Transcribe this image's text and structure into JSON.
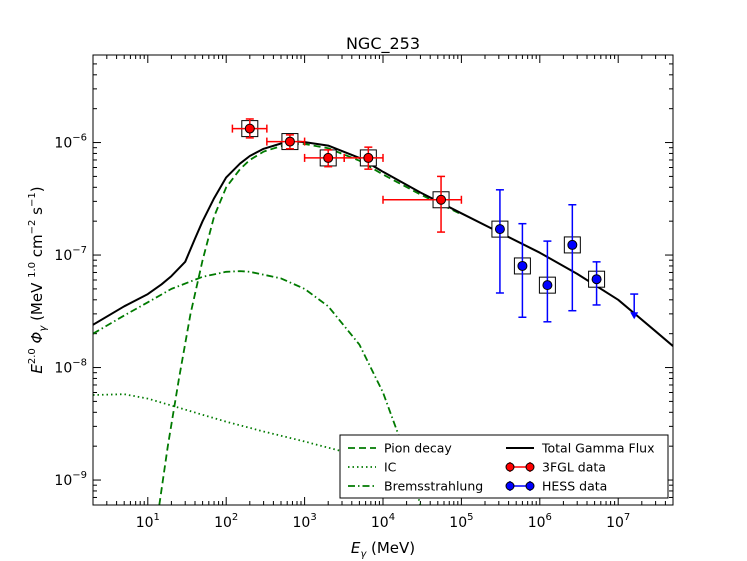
{
  "chart_data": {
    "type": "scatter",
    "title": "NGC_253",
    "xlabel": "E_γ (MeV)",
    "ylabel": "E^2.0 Φ_γ (MeV^1.0 cm^-2 s^-1)",
    "xscale": "log",
    "yscale": "log",
    "xlim": [
      2,
      50000000
    ],
    "ylim": [
      6e-10,
      6e-06
    ],
    "x_ticks": [
      {
        "value": 10,
        "label": "10",
        "exp": "1"
      },
      {
        "value": 100,
        "label": "10",
        "exp": "2"
      },
      {
        "value": 1000,
        "label": "10",
        "exp": "3"
      },
      {
        "value": 10000,
        "label": "10",
        "exp": "4"
      },
      {
        "value": 100000,
        "label": "10",
        "exp": "5"
      },
      {
        "value": 1000000,
        "label": "10",
        "exp": "6"
      },
      {
        "value": 10000000,
        "label": "10",
        "exp": "7"
      }
    ],
    "y_ticks": [
      {
        "value": 1e-09,
        "label": "10",
        "exp": "−9"
      },
      {
        "value": 1e-08,
        "label": "10",
        "exp": "−8"
      },
      {
        "value": 1e-07,
        "label": "10",
        "exp": "−7"
      },
      {
        "value": 1e-06,
        "label": "10",
        "exp": "−6"
      }
    ],
    "legend_position": "lower-right",
    "series": [
      {
        "name": "Pion decay",
        "kind": "line",
        "style": "dashed",
        "color": "#007a00",
        "points": [
          [
            14,
            6e-10
          ],
          [
            18,
            2e-09
          ],
          [
            25,
            8e-09
          ],
          [
            35,
            3e-08
          ],
          [
            50,
            9e-08
          ],
          [
            70,
            2.2e-07
          ],
          [
            100,
            4e-07
          ],
          [
            150,
            5.8e-07
          ],
          [
            200,
            7e-07
          ],
          [
            300,
            8.3e-07
          ],
          [
            500,
            9.3e-07
          ],
          [
            800,
            9.7e-07
          ],
          [
            1000,
            9.7e-07
          ],
          [
            2000,
            8.9e-07
          ],
          [
            5000,
            6.9e-07
          ],
          [
            10000,
            5.2e-07
          ],
          [
            30000,
            3.45e-07
          ],
          [
            100000,
            2.3e-07
          ]
        ]
      },
      {
        "name": "IC",
        "kind": "line",
        "style": "dotted",
        "color": "#007a00",
        "points": [
          [
            2,
            5.7e-09
          ],
          [
            5,
            5.8e-09
          ],
          [
            10,
            5.3e-09
          ],
          [
            20,
            4.6e-09
          ],
          [
            50,
            3.8e-09
          ],
          [
            100,
            3.3e-09
          ],
          [
            300,
            2.7e-09
          ],
          [
            1000,
            2.2e-09
          ],
          [
            3000,
            1.8e-09
          ],
          [
            10000,
            1.45e-09
          ],
          [
            30000,
            1.1e-09
          ],
          [
            60000,
            9e-10
          ]
        ]
      },
      {
        "name": "Bremsstrahlung",
        "kind": "line",
        "style": "dashdot",
        "color": "#007a00",
        "points": [
          [
            2,
            2e-08
          ],
          [
            5,
            2.9e-08
          ],
          [
            10,
            3.8e-08
          ],
          [
            20,
            5e-08
          ],
          [
            50,
            6.4e-08
          ],
          [
            100,
            7.1e-08
          ],
          [
            150,
            7.2e-08
          ],
          [
            200,
            7.1e-08
          ],
          [
            500,
            6.2e-08
          ],
          [
            1000,
            5e-08
          ],
          [
            2000,
            3.5e-08
          ],
          [
            5000,
            1.6e-08
          ],
          [
            10000,
            6e-09
          ],
          [
            20000,
            1.6e-09
          ],
          [
            30000,
            6e-10
          ]
        ]
      },
      {
        "name": "Total Gamma Flux",
        "kind": "line",
        "style": "solid",
        "color": "#000000",
        "points": [
          [
            2,
            2.4e-08
          ],
          [
            5,
            3.5e-08
          ],
          [
            10,
            4.5e-08
          ],
          [
            15,
            5.5e-08
          ],
          [
            20,
            6.5e-08
          ],
          [
            30,
            8.7e-08
          ],
          [
            40,
            1.4e-07
          ],
          [
            50,
            2e-07
          ],
          [
            70,
            3.2e-07
          ],
          [
            100,
            4.9e-07
          ],
          [
            150,
            6.5e-07
          ],
          [
            200,
            7.6e-07
          ],
          [
            300,
            8.8e-07
          ],
          [
            500,
            9.8e-07
          ],
          [
            800,
            1.02e-06
          ],
          [
            1000,
            1.01e-06
          ],
          [
            2000,
            9.4e-07
          ],
          [
            5000,
            7.3e-07
          ],
          [
            10000,
            5.5e-07
          ],
          [
            30000,
            3.6e-07
          ],
          [
            100000,
            2.35e-07
          ],
          [
            300000,
            1.6e-07
          ],
          [
            1000000,
            1.05e-07
          ],
          [
            3000000,
            6.8e-08
          ],
          [
            10000000,
            4e-08
          ],
          [
            30000000,
            2.1e-08
          ],
          [
            50000000,
            1.55e-08
          ]
        ]
      },
      {
        "name": "3FGL data",
        "kind": "errorbar",
        "color": "#ff0000",
        "marker_edge": "#000000",
        "points": [
          {
            "x": 200,
            "y": 1.33e-06,
            "xlo": 120,
            "xhi": 330,
            "ylo": 1.1e-06,
            "yhi": 1.62e-06
          },
          {
            "x": 650,
            "y": 1.02e-06,
            "xlo": 330,
            "xhi": 1000,
            "ylo": 8.8e-07,
            "yhi": 1.17e-06
          },
          {
            "x": 2000,
            "y": 7.3e-07,
            "xlo": 1000,
            "xhi": 3200,
            "ylo": 6.1e-07,
            "yhi": 8.6e-07
          },
          {
            "x": 6500,
            "y": 7.3e-07,
            "xlo": 3200,
            "xhi": 10000,
            "ylo": 5.8e-07,
            "yhi": 9.1e-07
          },
          {
            "x": 55000,
            "y": 3.1e-07,
            "xlo": 10000,
            "xhi": 100000,
            "ylo": 1.6e-07,
            "yhi": 5e-07
          }
        ]
      },
      {
        "name": "HESS data",
        "kind": "errorbar",
        "color": "#0000ff",
        "marker_edge": "#000000",
        "points": [
          {
            "x": 310000,
            "y": 1.7e-07,
            "ylo": 4.6e-08,
            "yhi": 3.8e-07
          },
          {
            "x": 600000,
            "y": 8e-08,
            "ylo": 2.8e-08,
            "yhi": 1.9e-07
          },
          {
            "x": 1250000,
            "y": 5.4e-08,
            "ylo": 2.55e-08,
            "yhi": 1.33e-07
          },
          {
            "x": 2600000,
            "y": 1.23e-07,
            "ylo": 3.2e-08,
            "yhi": 2.8e-07
          },
          {
            "x": 5300000,
            "y": 6.1e-08,
            "ylo": 3.6e-08,
            "yhi": 8.7e-08
          }
        ]
      },
      {
        "name": "HESS upper limit",
        "kind": "upper_limit",
        "color": "#0000ff",
        "points": [
          {
            "x": 16000000,
            "y": 4.5e-08,
            "arrow_to": 2.8e-08
          }
        ]
      }
    ],
    "open_squares": [
      {
        "x": 200,
        "y": 1.33e-06
      },
      {
        "x": 650,
        "y": 1.02e-06
      },
      {
        "x": 2000,
        "y": 7.3e-07
      },
      {
        "x": 6500,
        "y": 7.3e-07
      },
      {
        "x": 55000,
        "y": 3.1e-07
      },
      {
        "x": 310000,
        "y": 1.7e-07
      },
      {
        "x": 600000,
        "y": 8e-08
      },
      {
        "x": 1250000,
        "y": 5.4e-08
      },
      {
        "x": 2600000,
        "y": 1.23e-07
      },
      {
        "x": 5300000,
        "y": 6.1e-08
      }
    ],
    "legend": [
      {
        "label": "Pion decay",
        "kind": "line",
        "style": "dashed",
        "color": "#007a00"
      },
      {
        "label": "IC",
        "kind": "line",
        "style": "dotted",
        "color": "#007a00"
      },
      {
        "label": "Bremsstrahlung",
        "kind": "line",
        "style": "dashdot",
        "color": "#007a00"
      },
      {
        "label": "Total Gamma Flux",
        "kind": "line",
        "style": "solid",
        "color": "#000000"
      },
      {
        "label": "3FGL data",
        "kind": "errorbar",
        "color": "#ff0000"
      },
      {
        "label": "HESS data",
        "kind": "errorbar",
        "color": "#0000ff"
      }
    ]
  }
}
